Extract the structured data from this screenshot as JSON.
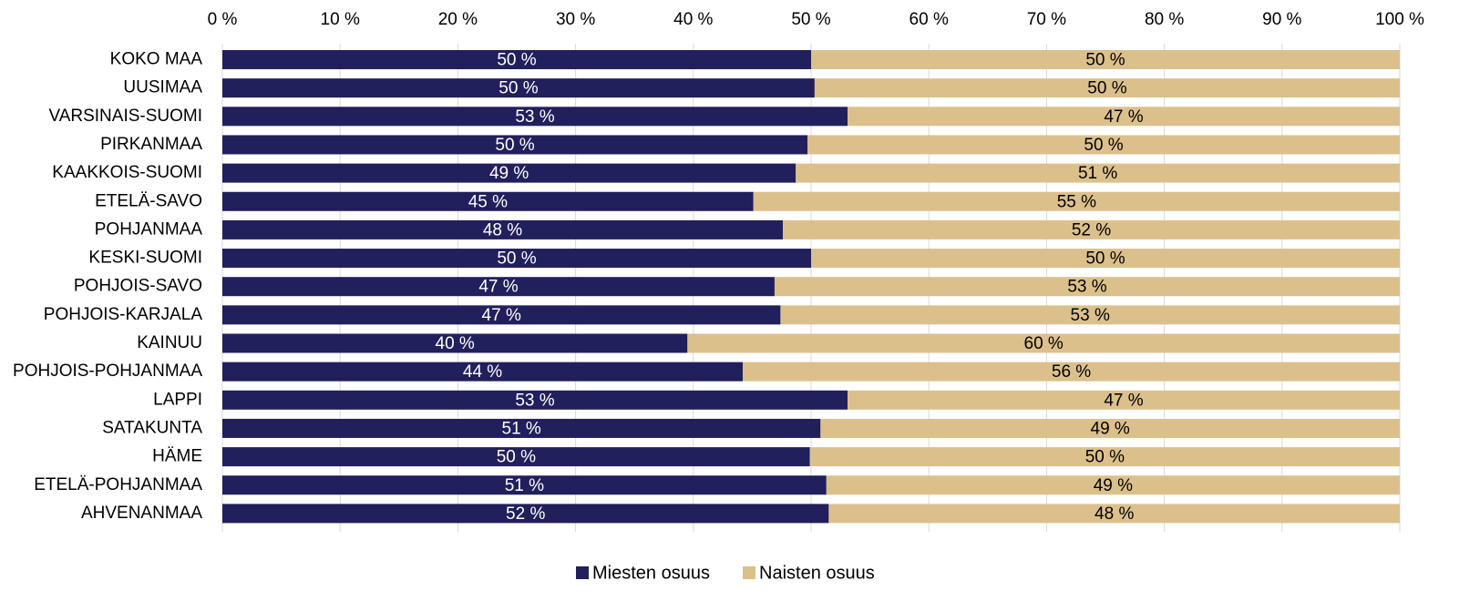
{
  "chart_data": {
    "type": "bar",
    "orientation": "horizontal",
    "stacked": "percent",
    "xlim": [
      0,
      100
    ],
    "x_ticks": [
      "0 %",
      "10 %",
      "20 %",
      "30 %",
      "40 %",
      "50 %",
      "60 %",
      "70 %",
      "80 %",
      "90 %",
      "100 %"
    ],
    "x_axis_position": "top",
    "grid": true,
    "legend_position": "bottom",
    "categories": [
      "KOKO MAA",
      "UUSIMAA",
      "VARSINAIS-SUOMI",
      "PIRKANMAA",
      "KAAKKOIS-SUOMI",
      "ETELÄ-SAVO",
      "POHJANMAA",
      "KESKI-SUOMI",
      "POHJOIS-SAVO",
      "POHJOIS-KARJALA",
      "KAINUU",
      "POHJOIS-POHJANMAA",
      "LAPPI",
      "SATAKUNTA",
      "HÄME",
      "ETELÄ-POHJANMAA",
      "AHVENANMAA"
    ],
    "series": [
      {
        "name": "Miesten osuus",
        "color": "#211f5c",
        "label_color": "#ffffff",
        "values": [
          50,
          50.3,
          53.1,
          49.7,
          48.7,
          45.1,
          47.6,
          50,
          46.9,
          47.4,
          39.5,
          44.2,
          53.1,
          50.8,
          49.9,
          51.3,
          51.5
        ],
        "labels": [
          "50 %",
          "50 %",
          "53 %",
          "50 %",
          "49 %",
          "45 %",
          "48 %",
          "50 %",
          "47 %",
          "47 %",
          "40 %",
          "44 %",
          "53 %",
          "51 %",
          "50 %",
          "51 %",
          "52 %"
        ]
      },
      {
        "name": "Naisten osuus",
        "color": "#dcc08c",
        "label_color": "#000000",
        "values": [
          50,
          49.7,
          46.9,
          50.3,
          51.3,
          54.9,
          52.4,
          50,
          53.1,
          52.6,
          60.5,
          55.8,
          46.9,
          49.2,
          50.1,
          48.7,
          48.5
        ],
        "labels": [
          "50 %",
          "50 %",
          "47 %",
          "50 %",
          "51 %",
          "55 %",
          "52 %",
          "50 %",
          "53 %",
          "53 %",
          "60 %",
          "56 %",
          "47 %",
          "49 %",
          "50 %",
          "49 %",
          "48 %"
        ]
      }
    ]
  }
}
